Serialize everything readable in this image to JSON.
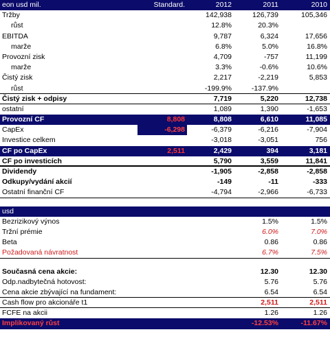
{
  "top": {
    "header": {
      "label": "eon usd mil.",
      "std": "Standard.",
      "y2012": "2012",
      "y2011": "2011",
      "y2010": "2010"
    },
    "rows": [
      {
        "label": "Tržby",
        "std": "",
        "y2012": "142,938",
        "y2011": "126,739",
        "y2010": "105,346"
      },
      {
        "label": "růst",
        "std": "",
        "y2012": "12.8%",
        "y2011": "20.3%",
        "y2010": ""
      },
      {
        "label": "EBITDA",
        "std": "",
        "y2012": "9,787",
        "y2011": "6,324",
        "y2010": "17,656"
      },
      {
        "label": "marže",
        "std": "",
        "y2012": "6.8%",
        "y2011": "5.0%",
        "y2010": "16.8%"
      },
      {
        "label": "Provozní zisk",
        "std": "",
        "y2012": "4,709",
        "y2011": "-757",
        "y2010": "11,199"
      },
      {
        "label": "marže",
        "std": "",
        "y2012": "3.3%",
        "y2011": "-0.6%",
        "y2010": "10.6%"
      },
      {
        "label": "Čistý zisk",
        "std": "",
        "y2012": "2,217",
        "y2011": "-2,219",
        "y2010": "5,853"
      },
      {
        "label": "růst",
        "std": "",
        "y2012": "-199.9%",
        "y2011": "-137.9%",
        "y2010": ""
      },
      {
        "label": "Čistý zisk + odpisy",
        "std": "",
        "y2012": "7,719",
        "y2011": "5,220",
        "y2010": "12,738"
      },
      {
        "label": "ostatní",
        "std": "",
        "y2012": "1,089",
        "y2011": "1,390",
        "y2010": "-1,653"
      },
      {
        "label": "Provozní CF",
        "std": "8,808",
        "y2012": "8,808",
        "y2011": "6,610",
        "y2010": "11,085"
      },
      {
        "label": "CapEx",
        "std": "-6,298",
        "y2012": "-6,379",
        "y2011": "-6,216",
        "y2010": "-7,904"
      },
      {
        "label": "Investice celkem",
        "std": "",
        "y2012": "-3,018",
        "y2011": "-3,051",
        "y2010": "756"
      },
      {
        "label": "CF po CapEx",
        "std": "2,511",
        "y2012": "2,429",
        "y2011": "394",
        "y2010": "3,181"
      },
      {
        "label": "CF po investicích",
        "std": "",
        "y2012": "5,790",
        "y2011": "3,559",
        "y2010": "11,841"
      },
      {
        "label": "Dividendy",
        "std": "",
        "y2012": "-1,905",
        "y2011": "-2,858",
        "y2010": "-2,858"
      },
      {
        "label": "Odkupy/vydání akcií",
        "std": "",
        "y2012": "-149",
        "y2011": "-11",
        "y2010": "-333"
      },
      {
        "label": "Ostatní finanční CF",
        "std": "",
        "y2012": "-4,794",
        "y2011": "-2,966",
        "y2010": "-6,733"
      }
    ]
  },
  "bottom": {
    "header": {
      "label": "usd"
    },
    "rows": [
      {
        "label": "Bezrizikový výnos",
        "y2011": "1.5%",
        "y2010": "1.5%"
      },
      {
        "label": "Tržní prémie",
        "y2011": "6.0%",
        "y2010": "7.0%"
      },
      {
        "label": "Beta",
        "y2011": "0.86",
        "y2010": "0.86"
      },
      {
        "label": "Požadovaná návratnost",
        "y2011": "6.7%",
        "y2010": "7.5%"
      },
      {
        "label": "Současná cena akcie:",
        "y2011": "12.30",
        "y2010": "12.30"
      },
      {
        "label": "Odp.nadbytečná hotovost:",
        "y2011": "5.76",
        "y2010": "5.76"
      },
      {
        "label": "Cena akcie zbývající na fundament:",
        "y2011": "6.54",
        "y2010": "6.54"
      },
      {
        "label": "Cash flow pro akcionáře  t1",
        "y2011": "2,511",
        "y2010": "2,511"
      },
      {
        "label": "FCFE na akcii",
        "y2011": "1.26",
        "y2010": "1.26"
      },
      {
        "label": "Implikovaný růst",
        "y2011": "-12.53%",
        "y2010": "-11.67%"
      }
    ]
  },
  "colors": {
    "navy": "#0b0b6b",
    "red": "#d01a1a",
    "std_red": "#ff4040"
  }
}
